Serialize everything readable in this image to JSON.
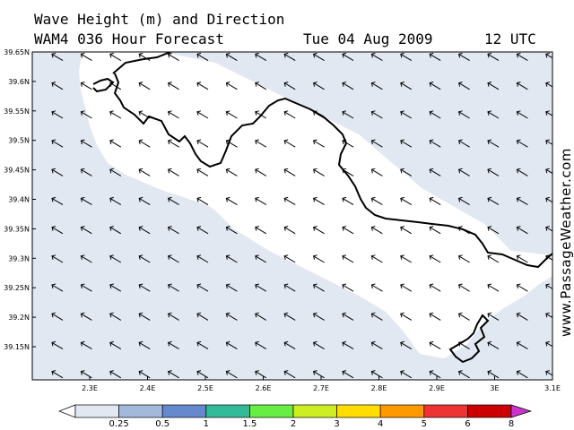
{
  "header": {
    "title": "Wave Height (m) and Direction",
    "model": "WAM4 036 Hour Forecast",
    "date": "Tue 04 Aug 2009",
    "time": "12 UTC"
  },
  "watermark": "www.PassageWeather.com",
  "map": {
    "lat_range": [
      39.1,
      39.65
    ],
    "lon_range": [
      2.2,
      3.1
    ],
    "lat_labels": [
      "39.65N",
      "39.6N",
      "39.55N",
      "39.5N",
      "39.45N",
      "39.4N",
      "39.35N",
      "39.3N",
      "39.25N",
      "39.2N",
      "39.15N"
    ],
    "lon_labels": [
      "2.3E",
      "2.4E",
      "2.5E",
      "2.6E",
      "2.7E",
      "2.8E",
      "2.9E",
      "3E",
      "3.1E"
    ],
    "sea_color": "#e2e8f2",
    "calm_color": "#ffffff",
    "arrow_direction": "northwest"
  },
  "legend": {
    "labels": [
      "0.25",
      "0.5",
      "1",
      "1.5",
      "2",
      "3",
      "4",
      "5",
      "6",
      "8"
    ],
    "colors": [
      "#ffffff",
      "#e2e8f2",
      "#a4b8dc",
      "#6688cc",
      "#33bb99",
      "#66ee44",
      "#ccee22",
      "#ffdd00",
      "#ff9900",
      "#ee3333",
      "#cc0000",
      "#cc33cc"
    ]
  }
}
